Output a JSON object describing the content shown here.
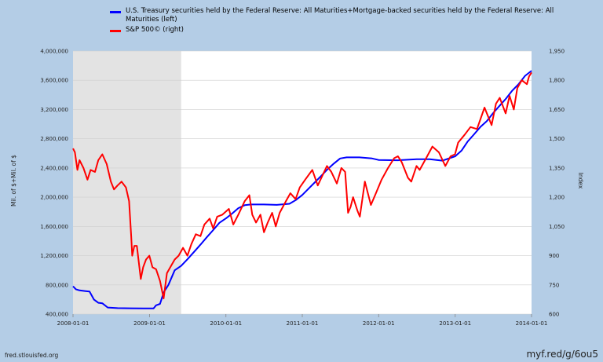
{
  "source": "fred.stlouisfed.org",
  "shortlink": "myf.red/g/6ou5",
  "chart_data": {
    "type": "line",
    "title": "",
    "recession_shading": {
      "start": "2008-01-01",
      "end": "2009-06-01",
      "color": "#e3e3e3"
    },
    "xlim": [
      "2008-01-01",
      "2014-01-01"
    ],
    "x_ticks": [
      "2008-01-01",
      "2009-01-01",
      "2010-01-01",
      "2011-01-01",
      "2012-01-01",
      "2013-01-01",
      "2014-01-01"
    ],
    "y_left": {
      "label": "Mil. of $+Mil. of $",
      "lim": [
        400000,
        4000000
      ],
      "ticks": [
        "400,000",
        "800,000",
        "1,200,000",
        "1,600,000",
        "2,000,000",
        "2,400,000",
        "2,800,000",
        "3,200,000",
        "3,600,000",
        "4,000,000"
      ]
    },
    "y_right": {
      "label": "Index",
      "lim": [
        600,
        1950
      ],
      "ticks": [
        "600",
        "750",
        "900",
        "1,050",
        "1,200",
        "1,350",
        "1,500",
        "1,650",
        "1,800",
        "1,950"
      ]
    },
    "series": [
      {
        "name": "U.S. Treasury securities held by the Federal Reserve: All Maturities+Mortgage-backed securities held by the Federal Reserve: All Maturities (left)",
        "axis": "left",
        "color": "#0000ff",
        "points": [
          [
            "2008-01-01",
            780000
          ],
          [
            "2008-01-15",
            740000
          ],
          [
            "2008-02-01",
            725000
          ],
          [
            "2008-03-01",
            715000
          ],
          [
            "2008-03-20",
            710000
          ],
          [
            "2008-04-10",
            600000
          ],
          [
            "2008-05-01",
            555000
          ],
          [
            "2008-05-20",
            548000
          ],
          [
            "2008-06-15",
            490000
          ],
          [
            "2008-08-01",
            482000
          ],
          [
            "2008-10-01",
            480000
          ],
          [
            "2008-12-01",
            478000
          ],
          [
            "2009-01-01",
            478000
          ],
          [
            "2009-01-20",
            478000
          ],
          [
            "2009-02-01",
            520000
          ],
          [
            "2009-02-20",
            540000
          ],
          [
            "2009-03-10",
            700000
          ],
          [
            "2009-04-01",
            800000
          ],
          [
            "2009-05-01",
            1000000
          ],
          [
            "2009-06-01",
            1060000
          ],
          [
            "2009-07-01",
            1150000
          ],
          [
            "2009-08-01",
            1250000
          ],
          [
            "2009-09-01",
            1350000
          ],
          [
            "2009-10-01",
            1450000
          ],
          [
            "2009-11-01",
            1550000
          ],
          [
            "2009-12-01",
            1650000
          ],
          [
            "2010-01-01",
            1710000
          ],
          [
            "2010-02-01",
            1780000
          ],
          [
            "2010-03-01",
            1850000
          ],
          [
            "2010-04-01",
            1890000
          ],
          [
            "2010-05-01",
            1900000
          ],
          [
            "2010-07-01",
            1900000
          ],
          [
            "2010-09-01",
            1895000
          ],
          [
            "2010-11-01",
            1910000
          ],
          [
            "2010-12-01",
            1960000
          ],
          [
            "2011-01-01",
            2030000
          ],
          [
            "2011-02-01",
            2120000
          ],
          [
            "2011-03-01",
            2200000
          ],
          [
            "2011-04-01",
            2290000
          ],
          [
            "2011-05-01",
            2380000
          ],
          [
            "2011-06-01",
            2460000
          ],
          [
            "2011-07-01",
            2530000
          ],
          [
            "2011-08-01",
            2545000
          ],
          [
            "2011-10-01",
            2545000
          ],
          [
            "2011-12-01",
            2530000
          ],
          [
            "2012-01-01",
            2510000
          ],
          [
            "2012-04-01",
            2505000
          ],
          [
            "2012-07-01",
            2520000
          ],
          [
            "2012-09-01",
            2520000
          ],
          [
            "2012-11-01",
            2500000
          ],
          [
            "2013-01-01",
            2560000
          ],
          [
            "2013-02-01",
            2640000
          ],
          [
            "2013-03-01",
            2760000
          ],
          [
            "2013-04-01",
            2860000
          ],
          [
            "2013-05-01",
            2960000
          ],
          [
            "2013-06-01",
            3040000
          ],
          [
            "2013-07-01",
            3150000
          ],
          [
            "2013-08-01",
            3250000
          ],
          [
            "2013-09-01",
            3350000
          ],
          [
            "2013-10-01",
            3460000
          ],
          [
            "2013-11-01",
            3550000
          ],
          [
            "2013-12-01",
            3660000
          ],
          [
            "2014-01-01",
            3730000
          ]
        ]
      },
      {
        "name": "S&P 500© (right)",
        "axis": "right",
        "color": "#ff0000",
        "points": [
          [
            "2008-01-01",
            1450
          ],
          [
            "2008-01-10",
            1430
          ],
          [
            "2008-01-22",
            1340
          ],
          [
            "2008-02-01",
            1390
          ],
          [
            "2008-02-20",
            1350
          ],
          [
            "2008-03-10",
            1290
          ],
          [
            "2008-03-25",
            1340
          ],
          [
            "2008-04-15",
            1330
          ],
          [
            "2008-05-01",
            1390
          ],
          [
            "2008-05-20",
            1420
          ],
          [
            "2008-06-10",
            1370
          ],
          [
            "2008-06-30",
            1280
          ],
          [
            "2008-07-15",
            1240
          ],
          [
            "2008-08-01",
            1260
          ],
          [
            "2008-08-20",
            1280
          ],
          [
            "2008-09-10",
            1250
          ],
          [
            "2008-09-25",
            1180
          ],
          [
            "2008-10-05",
            1000
          ],
          [
            "2008-10-10",
            900
          ],
          [
            "2008-10-20",
            950
          ],
          [
            "2008-11-01",
            950
          ],
          [
            "2008-11-20",
            780
          ],
          [
            "2008-12-01",
            840
          ],
          [
            "2008-12-15",
            880
          ],
          [
            "2008-12-31",
            900
          ],
          [
            "2009-01-15",
            840
          ],
          [
            "2009-02-01",
            830
          ],
          [
            "2009-02-20",
            770
          ],
          [
            "2009-03-09",
            680
          ],
          [
            "2009-03-25",
            810
          ],
          [
            "2009-04-15",
            850
          ],
          [
            "2009-05-01",
            880
          ],
          [
            "2009-05-20",
            900
          ],
          [
            "2009-06-10",
            940
          ],
          [
            "2009-07-01",
            900
          ],
          [
            "2009-07-20",
            960
          ],
          [
            "2009-08-10",
            1010
          ],
          [
            "2009-09-01",
            1000
          ],
          [
            "2009-09-20",
            1060
          ],
          [
            "2009-10-15",
            1090
          ],
          [
            "2009-11-01",
            1040
          ],
          [
            "2009-11-20",
            1100
          ],
          [
            "2009-12-15",
            1110
          ],
          [
            "2010-01-15",
            1140
          ],
          [
            "2010-02-05",
            1060
          ],
          [
            "2010-03-01",
            1110
          ],
          [
            "2010-04-01",
            1180
          ],
          [
            "2010-04-23",
            1210
          ],
          [
            "2010-05-07",
            1110
          ],
          [
            "2010-05-25",
            1070
          ],
          [
            "2010-06-15",
            1110
          ],
          [
            "2010-07-02",
            1020
          ],
          [
            "2010-07-20",
            1070
          ],
          [
            "2010-08-10",
            1120
          ],
          [
            "2010-08-27",
            1050
          ],
          [
            "2010-09-15",
            1120
          ],
          [
            "2010-10-15",
            1180
          ],
          [
            "2010-11-05",
            1220
          ],
          [
            "2010-11-30",
            1190
          ],
          [
            "2010-12-20",
            1250
          ],
          [
            "2011-01-15",
            1290
          ],
          [
            "2011-02-18",
            1340
          ],
          [
            "2011-03-16",
            1260
          ],
          [
            "2011-04-29",
            1360
          ],
          [
            "2011-05-20",
            1330
          ],
          [
            "2011-06-15",
            1270
          ],
          [
            "2011-07-07",
            1350
          ],
          [
            "2011-07-25",
            1330
          ],
          [
            "2011-08-08",
            1120
          ],
          [
            "2011-08-20",
            1150
          ],
          [
            "2011-09-01",
            1200
          ],
          [
            "2011-09-22",
            1130
          ],
          [
            "2011-10-03",
            1100
          ],
          [
            "2011-10-27",
            1280
          ],
          [
            "2011-11-25",
            1160
          ],
          [
            "2011-12-15",
            1210
          ],
          [
            "2012-01-15",
            1290
          ],
          [
            "2012-02-15",
            1350
          ],
          [
            "2012-03-15",
            1400
          ],
          [
            "2012-04-02",
            1410
          ],
          [
            "2012-04-20",
            1380
          ],
          [
            "2012-05-20",
            1300
          ],
          [
            "2012-06-05",
            1280
          ],
          [
            "2012-06-30",
            1360
          ],
          [
            "2012-07-15",
            1340
          ],
          [
            "2012-08-15",
            1400
          ],
          [
            "2012-09-14",
            1460
          ],
          [
            "2012-10-15",
            1430
          ],
          [
            "2012-11-15",
            1360
          ],
          [
            "2012-12-10",
            1410
          ],
          [
            "2012-12-31",
            1420
          ],
          [
            "2013-01-15",
            1480
          ],
          [
            "2013-02-15",
            1520
          ],
          [
            "2013-03-15",
            1560
          ],
          [
            "2013-04-15",
            1550
          ],
          [
            "2013-05-21",
            1660
          ],
          [
            "2013-06-24",
            1570
          ],
          [
            "2013-07-15",
            1680
          ],
          [
            "2013-08-02",
            1710
          ],
          [
            "2013-08-30",
            1630
          ],
          [
            "2013-09-18",
            1720
          ],
          [
            "2013-10-08",
            1650
          ],
          [
            "2013-10-25",
            1760
          ],
          [
            "2013-11-15",
            1800
          ],
          [
            "2013-12-10",
            1780
          ],
          [
            "2013-12-20",
            1820
          ],
          [
            "2014-01-01",
            1840
          ]
        ]
      }
    ]
  }
}
